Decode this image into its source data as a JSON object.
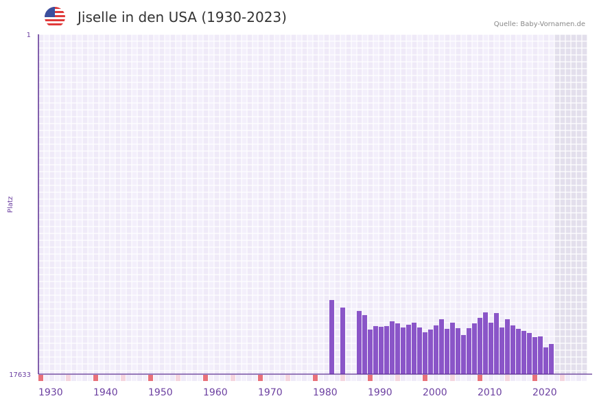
{
  "header": {
    "title": "Jiselle in den USA (1930-2023)",
    "source": "Quelle: Baby-Vornamen.de",
    "flag_icon": "us-flag-icon"
  },
  "colors": {
    "bar": "#8a55c8",
    "axis": "#5a2d91",
    "label": "#6b3fa0",
    "decade_marker": "#e8717a",
    "half_marker": "#f5d5de",
    "grid_bg": "#efeaf8",
    "future_bg": "#e3dfec"
  },
  "chart_data": {
    "type": "bar",
    "title": "Jiselle in den USA (1930-2023)",
    "ylabel": "Platz",
    "ylim": [
      17633,
      1
    ],
    "y_tick_labels": [
      "1",
      "17633"
    ],
    "x_range": [
      1930,
      2029
    ],
    "x_tick_labels": [
      "1930",
      "1940",
      "1950",
      "1960",
      "1970",
      "1980",
      "1990",
      "2000",
      "2010",
      "2020"
    ],
    "series": [
      {
        "name": "Jiselle",
        "x": [
          1983,
          1985,
          1988,
          1989,
          1990,
          1991,
          1992,
          1993,
          1994,
          1995,
          1996,
          1997,
          1998,
          1999,
          2000,
          2001,
          2002,
          2003,
          2004,
          2005,
          2006,
          2007,
          2008,
          2009,
          2010,
          2011,
          2012,
          2013,
          2014,
          2015,
          2016,
          2017,
          2018,
          2019,
          2020,
          2021,
          2022,
          2023
        ],
        "values": [
          13786,
          14177,
          14355,
          14569,
          15317,
          15139,
          15175,
          15139,
          14890,
          14997,
          15211,
          15068,
          14961,
          15211,
          15460,
          15317,
          15104,
          14783,
          15282,
          14961,
          15246,
          15603,
          15246,
          14997,
          14712,
          14427,
          14961,
          14463,
          15211,
          14783,
          15104,
          15282,
          15389,
          15496,
          15710,
          15674,
          16244,
          16066
        ]
      }
    ]
  }
}
